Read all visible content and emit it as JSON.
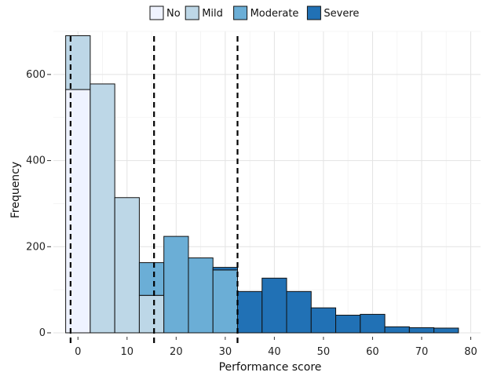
{
  "chart_data": {
    "type": "bar",
    "subtype": "stacked-histogram",
    "xlabel": "Performance score",
    "ylabel": "Frequency",
    "xlim": [
      -5,
      82
    ],
    "ylim": [
      0,
      700
    ],
    "xticks": [
      0,
      10,
      20,
      30,
      40,
      50,
      60,
      70,
      80
    ],
    "yticks": [
      0,
      200,
      400,
      600
    ],
    "grid": true,
    "legend_position": "top",
    "bin_width": 5,
    "bin_centers": [
      0,
      5,
      10,
      15,
      20,
      25,
      30,
      35,
      40,
      45,
      50,
      55,
      60,
      65,
      70,
      75
    ],
    "series": [
      {
        "name": "No",
        "color": "#eff3ff",
        "values": [
          565,
          0,
          0,
          0,
          0,
          0,
          0,
          0,
          0,
          0,
          0,
          0,
          0,
          0,
          0,
          0
        ]
      },
      {
        "name": "Mild",
        "color": "#bdd7e7",
        "values": [
          125,
          578,
          314,
          87,
          0,
          0,
          0,
          0,
          0,
          0,
          0,
          0,
          0,
          0,
          0,
          0
        ]
      },
      {
        "name": "Moderate",
        "color": "#6baed6",
        "values": [
          0,
          0,
          0,
          76,
          224,
          174,
          146,
          0,
          0,
          0,
          0,
          0,
          0,
          0,
          0,
          0
        ]
      },
      {
        "name": "Severe",
        "color": "#2171b5",
        "values": [
          0,
          0,
          0,
          0,
          0,
          0,
          6,
          96,
          127,
          96,
          58,
          41,
          43,
          14,
          12,
          11
        ]
      }
    ],
    "vlines": [
      -1.5,
      15.5,
      32.5
    ]
  }
}
